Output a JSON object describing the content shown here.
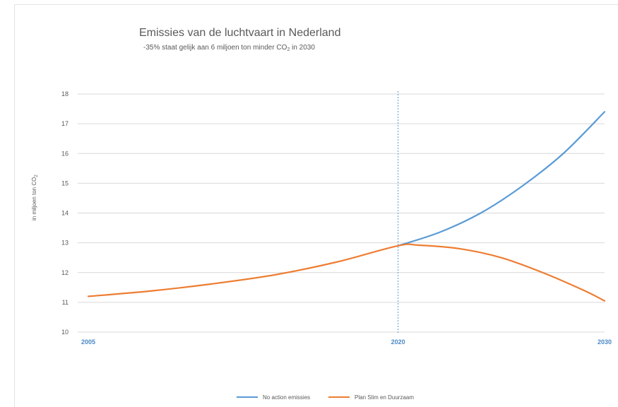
{
  "chart_data": {
    "type": "line",
    "title": "Emissies van de luchtvaart in Nederland",
    "subtitle": {
      "text_before": "-35% staat gelijk aan 6 miljoen ton minder CO",
      "subscript": "2",
      "text_after": " in 2030"
    },
    "ylabel": {
      "text": "in miljoen ton CO",
      "subscript": "2"
    },
    "xlabel": "",
    "ylim": [
      10,
      18
    ],
    "y_ticks": [
      "10",
      "11",
      "12",
      "13",
      "14",
      "15",
      "16",
      "17",
      "18"
    ],
    "xlim": [
      2005,
      2030
    ],
    "x_ticks": [
      "2005",
      "2020",
      "2030"
    ],
    "vertical_marker_x": 2020,
    "grid": true,
    "legend_position": "bottom",
    "series": [
      {
        "name": "No action emissies",
        "color": "#5b9bd5",
        "x": [
          2020,
          2022,
          2024,
          2026,
          2028,
          2030
        ],
        "y": [
          12.9,
          13.35,
          14.0,
          14.9,
          16.0,
          17.4
        ]
      },
      {
        "name": "Plan Slim en Duurzaam",
        "color": "#ed7d31",
        "x": [
          2005,
          2008,
          2011,
          2014,
          2017,
          2020,
          2021,
          2023,
          2025,
          2027,
          2029,
          2030
        ],
        "y": [
          11.2,
          11.38,
          11.62,
          11.92,
          12.35,
          12.9,
          12.92,
          12.8,
          12.5,
          12.0,
          11.4,
          11.05
        ]
      }
    ]
  }
}
